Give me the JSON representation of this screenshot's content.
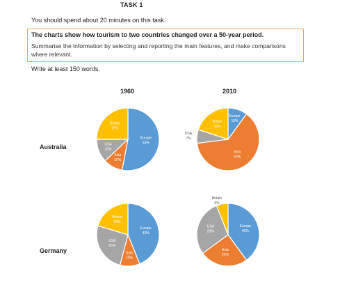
{
  "task": {
    "title": "TASK 1",
    "instruction": "You should spend about 20 minutes on this task.",
    "heading": "The charts show how tourism to two countries changed over a 50-year period.",
    "body": "Summarise the information by selecting and reporting the main features, and make comparisons where relevant.",
    "word_count": "Write at least 150 words."
  },
  "columns": [
    "1960",
    "2010"
  ],
  "rows": [
    "Australia",
    "Germany"
  ],
  "colors": {
    "Europe": "#5b9bd5",
    "Asia": "#ed7d31",
    "USA": "#a5a5a5",
    "Britain": "#ffc000"
  },
  "chart_data": [
    {
      "type": "pie",
      "country": "Australia",
      "year": "1960",
      "slices": [
        {
          "label": "Europe",
          "value": 53,
          "text": "53%"
        },
        {
          "label": "Asia",
          "value": 10,
          "text": "10%"
        },
        {
          "label": "USA",
          "value": 12,
          "text": "12%"
        },
        {
          "label": "Britain",
          "value": 25,
          "text": "25%"
        }
      ]
    },
    {
      "type": "pie",
      "country": "Australia",
      "year": "2010",
      "slices": [
        {
          "label": "Europe",
          "value": 10,
          "text": "10%"
        },
        {
          "label": "Asia",
          "value": 63,
          "text": "63%"
        },
        {
          "label": "USA",
          "value": 7,
          "text": "7%"
        },
        {
          "label": "Britain",
          "value": 20,
          "text": "20%"
        }
      ]
    },
    {
      "type": "pie",
      "country": "Germany",
      "year": "1960",
      "slices": [
        {
          "label": "Europe",
          "value": 43,
          "text": "43%"
        },
        {
          "label": "Asia",
          "value": 10,
          "text": "10%"
        },
        {
          "label": "USA",
          "value": 25,
          "text": "25%"
        },
        {
          "label": "Britain",
          "value": 20,
          "text": "20%"
        }
      ]
    },
    {
      "type": "pie",
      "country": "Germany",
      "year": "2010",
      "slices": [
        {
          "label": "Europe",
          "value": 40,
          "text": "40%"
        },
        {
          "label": "Asia",
          "value": 25,
          "text": "25%"
        },
        {
          "label": "USA",
          "value": 29,
          "text": "29%"
        },
        {
          "label": "Britain",
          "value": 6,
          "text": "6%"
        }
      ]
    }
  ]
}
